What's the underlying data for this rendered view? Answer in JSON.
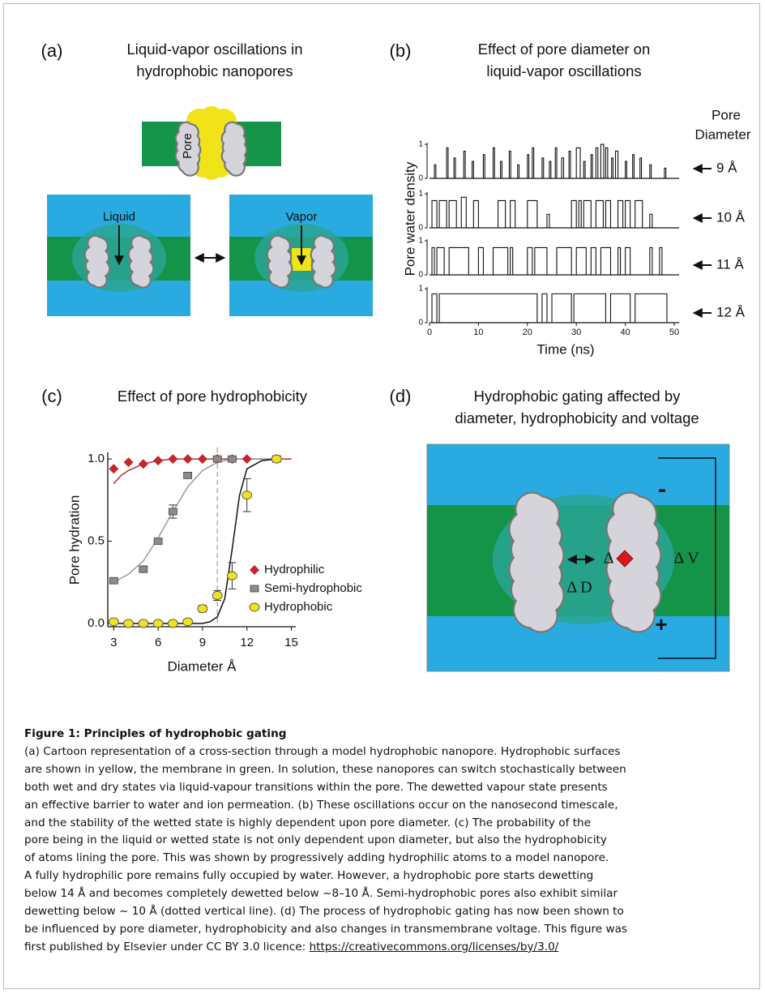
{
  "panel_a": {
    "label": "(a)",
    "title": [
      "Liquid-vapor oscillations in",
      "hydrophobic nanopores"
    ],
    "pore_label": "Pore",
    "liquid_label": "Liquid",
    "vapor_label": "Vapor"
  },
  "chart_data": [
    {
      "type": "trace",
      "panel_label": "(b)",
      "title": [
        "Effect of pore diameter on",
        "liquid-vapor oscillations"
      ],
      "legend_title": [
        "Pore",
        "Diameter"
      ],
      "xlabel": "Time (ns)",
      "ylabel": "Pore water density",
      "xlim": [
        0,
        51
      ],
      "xticks": [
        0,
        10,
        20,
        30,
        40,
        50
      ],
      "ylim": [
        0,
        1.05
      ],
      "yticks": [
        0,
        1
      ],
      "series": [
        {
          "name": "9 Å",
          "color": "#111111",
          "wet_intervals": [
            [
              1,
              1.3,
              0.4
            ],
            [
              3.5,
              3.8,
              0.9
            ],
            [
              5,
              5.3,
              0.6
            ],
            [
              7,
              7.3,
              0.8
            ],
            [
              8.7,
              9,
              0.5
            ],
            [
              11,
              11.3,
              0.7
            ],
            [
              13,
              13.3,
              0.9
            ],
            [
              14.5,
              14.8,
              0.5
            ],
            [
              16.3,
              16.6,
              0.8
            ],
            [
              18,
              18.3,
              0.4
            ],
            [
              20,
              20.3,
              0.7
            ],
            [
              21,
              21.3,
              0.9
            ],
            [
              23,
              23.3,
              0.6
            ],
            [
              24.5,
              24.8,
              0.5
            ],
            [
              25.7,
              26,
              0.9
            ],
            [
              27,
              27.4,
              0.6
            ],
            [
              28.5,
              28.8,
              0.8
            ],
            [
              30,
              30.8,
              0.9
            ],
            [
              31.5,
              31.8,
              0.5
            ],
            [
              33,
              33.3,
              0.7
            ],
            [
              34,
              34.4,
              0.9
            ],
            [
              35,
              35.6,
              1
            ],
            [
              36,
              36.4,
              0.9
            ],
            [
              37.2,
              37.5,
              0.6
            ],
            [
              38,
              38.5,
              0.8
            ],
            [
              40,
              40.3,
              0.5
            ],
            [
              41.5,
              41.8,
              0.7
            ],
            [
              43,
              43.3,
              0.6
            ],
            [
              45,
              45.3,
              0.4
            ],
            [
              48,
              48.3,
              0.3
            ]
          ]
        },
        {
          "name": "10 Å",
          "color": "#111111",
          "wet_intervals": [
            [
              0.5,
              1.5,
              0.8
            ],
            [
              2,
              3.5,
              0.8
            ],
            [
              4,
              5.5,
              0.8
            ],
            [
              6.5,
              7.5,
              0.9
            ],
            [
              9,
              10,
              0.8
            ],
            [
              14,
              15.5,
              0.8
            ],
            [
              16.5,
              17.5,
              0.8
            ],
            [
              20,
              22,
              0.8
            ],
            [
              24,
              24.5,
              0.4
            ],
            [
              29,
              30,
              0.8
            ],
            [
              30.5,
              31,
              0.8
            ],
            [
              31.5,
              33,
              0.8
            ],
            [
              34,
              35.5,
              0.8
            ],
            [
              36,
              37,
              0.8
            ],
            [
              38.5,
              39.5,
              0.8
            ],
            [
              40,
              41,
              0.8
            ],
            [
              42,
              43.5,
              0.8
            ],
            [
              45,
              45.5,
              0.4
            ]
          ]
        },
        {
          "name": "11 Å",
          "color": "#111111",
          "wet_intervals": [
            [
              0.5,
              1,
              0.8
            ],
            [
              1.5,
              3,
              0.8
            ],
            [
              4,
              8,
              0.8
            ],
            [
              10,
              11,
              0.8
            ],
            [
              13,
              16,
              0.8
            ],
            [
              16.5,
              17,
              0.8
            ],
            [
              20,
              21,
              0.8
            ],
            [
              21.5,
              24,
              0.8
            ],
            [
              26,
              29,
              0.8
            ],
            [
              30,
              32,
              0.8
            ],
            [
              33,
              34,
              0.8
            ],
            [
              35,
              37,
              0.8
            ],
            [
              38.5,
              39,
              0.8
            ],
            [
              40,
              41,
              0.8
            ],
            [
              45,
              45.5,
              0.8
            ],
            [
              47,
              47.5,
              0.8
            ]
          ]
        },
        {
          "name": "12 Å",
          "color": "#111111",
          "wet_intervals": [
            [
              0.5,
              1.5,
              0.85
            ],
            [
              2,
              22,
              0.85
            ],
            [
              23,
              24,
              0.85
            ],
            [
              25,
              29,
              0.85
            ],
            [
              29.5,
              36,
              0.85
            ],
            [
              37,
              41,
              0.85
            ],
            [
              42,
              48.5,
              0.85
            ]
          ]
        }
      ]
    },
    {
      "type": "scatter",
      "panel_label": "(c)",
      "title": "Effect of pore hydrophobicity",
      "xlabel": "Diameter Å",
      "ylabel": "Pore hydration",
      "xlim": [
        2.6,
        15.3
      ],
      "xticks": [
        3,
        6,
        9,
        12,
        15
      ],
      "ylim": [
        -0.02,
        1.04
      ],
      "yticks": [
        {
          "value": 0,
          "label": "0.0"
        },
        {
          "value": 0.5,
          "label": "0.5"
        },
        {
          "value": 1,
          "label": "1.0"
        }
      ],
      "vline": 10,
      "series": [
        {
          "name": "Hydrophilic",
          "color": "#c1272d",
          "marker": "diamond",
          "x": [
            3,
            4,
            5,
            6,
            7,
            8,
            9,
            10,
            11,
            12,
            14
          ],
          "values": [
            0.94,
            0.98,
            0.97,
            0.99,
            1,
            1,
            1,
            1,
            1,
            1,
            1
          ]
        },
        {
          "name": "Semi-hydrophobic",
          "color": "#8c8c8c",
          "marker": "square",
          "x": [
            3,
            5,
            6,
            7,
            8,
            10,
            11,
            14
          ],
          "values": [
            0.26,
            0.33,
            0.5,
            0.68,
            0.9,
            1,
            1,
            1
          ],
          "errors": [
            0.01,
            0.02,
            0.01,
            0.04,
            0.01,
            0.01,
            0.01,
            0.01
          ]
        },
        {
          "name": "Hydrophobic",
          "color": "#f2e21a",
          "marker": "circle",
          "x": [
            3,
            4,
            5,
            6,
            7,
            8,
            9,
            10,
            11,
            12,
            14
          ],
          "values": [
            0.01,
            0,
            0,
            0,
            0,
            0.01,
            0.09,
            0.17,
            0.29,
            0.78,
            1
          ],
          "errors": [
            0.01,
            0,
            0,
            0,
            0,
            0.01,
            0.02,
            0.03,
            0.08,
            0.1,
            0.01
          ]
        }
      ],
      "fits": [
        {
          "color": "#c1272d",
          "x": [
            3,
            3.5,
            4,
            5,
            6,
            7,
            8,
            10,
            12,
            14,
            15
          ],
          "values": [
            0.85,
            0.9,
            0.93,
            0.97,
            0.99,
            1,
            1,
            1,
            1,
            1,
            1
          ]
        },
        {
          "color": "#9a9a9a",
          "x": [
            3,
            4,
            5,
            6,
            7,
            8,
            9,
            10,
            11,
            12,
            14
          ],
          "values": [
            0.25,
            0.3,
            0.38,
            0.52,
            0.68,
            0.83,
            0.93,
            0.98,
            1,
            1,
            1
          ]
        },
        {
          "color": "#111111",
          "x": [
            3,
            8,
            9,
            9.5,
            10,
            10.5,
            11,
            11.5,
            12,
            13,
            14
          ],
          "values": [
            0,
            0,
            0,
            0.01,
            0.04,
            0.15,
            0.45,
            0.78,
            0.94,
            0.99,
            1
          ]
        }
      ]
    }
  ],
  "panel_d": {
    "label": "(d)",
    "title": [
      "Hydrophobic gating affected by",
      "diameter, hydrophobicity and voltage"
    ],
    "delta_d": "Δ D",
    "delta_h": "Δ",
    "delta_v": "Δ V",
    "minus": "-",
    "plus": "+"
  },
  "caption": {
    "title": "Figure 1: Principles of hydrophobic gating",
    "lines": [
      "(a) Cartoon representation of a cross-section through a model hydrophobic nanopore. Hydrophobic surfaces",
      "are shown in yellow, the membrane in green. In solution, these nanopores can switch stochastically between",
      "both wet and dry states via liquid-vapour transitions within the pore. The dewetted vapour state presents",
      "an effective barrier to water and ion permeation. (b) These oscillations occur on the nanosecond timescale,",
      "and the stability of the wetted state is highly dependent upon pore diameter. (c) The probability of the",
      "pore being in the liquid or wetted state is not only dependent upon diameter, but also the hydrophobicity",
      "of atoms lining the pore. This was shown by progressively adding hydrophilic atoms to a model nanopore.",
      "A fully hydrophilic pore remains fully occupied by water. However, a hydrophobic pore starts dewetting",
      "below 14 Å and becomes completely dewetted below ~8–10 Å. Semi-hydrophobic pores also exhibit similar",
      "dewetting below ~ 10 Å (dotted vertical line). (d) The process of hydrophobic gating has now been shown to",
      "be influenced by pore diameter, hydrophobicity and also changes in transmembrane voltage. This figure was",
      "first published by Elsevier under CC BY 3.0 licence: "
    ],
    "link": "https://creativecommons.org/licenses/by/3.0/"
  }
}
